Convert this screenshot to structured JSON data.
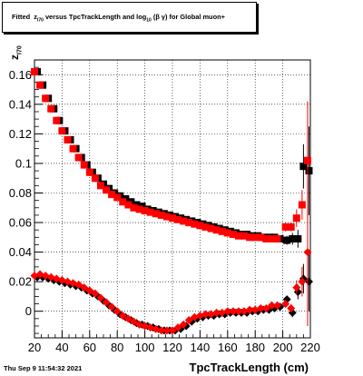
{
  "title": {
    "prefix": "Fitted",
    "z": "z",
    "z_sub": "I70",
    "middle": " versus TpcTrackLength and log",
    "log_sub": "10",
    "suffix": "(β γ) for Global muon+"
  },
  "footer_date": "Thu Sep  9 11:54:32 2021",
  "chart_data": {
    "type": "scatter",
    "xlabel": "TpcTrackLength (cm)",
    "ylabel_main": "z",
    "ylabel_sub": "I70",
    "xlim": [
      20,
      220
    ],
    "ylim": [
      -0.018,
      0.17
    ],
    "x_ticks": [
      20,
      40,
      60,
      80,
      100,
      120,
      140,
      160,
      180,
      200,
      220
    ],
    "y_ticks": [
      0,
      0.02,
      0.04,
      0.06,
      0.08,
      0.1,
      0.12,
      0.14,
      0.16
    ],
    "y_tick_labels": [
      "0",
      "0.02",
      "0.04",
      "0.06",
      "0.08",
      "0.1",
      "0.12",
      "0.14",
      "0.16"
    ],
    "grid": true,
    "colors": {
      "series_a": "#000000",
      "series_b": "#ff0000"
    },
    "series": [
      {
        "marker": "square",
        "color": "#000000",
        "x": [
          22,
          26,
          30,
          34,
          38,
          42,
          46,
          50,
          54,
          58,
          62,
          66,
          70,
          74,
          78,
          82,
          86,
          90,
          94,
          98,
          102,
          106,
          110,
          114,
          118,
          122,
          126,
          130,
          134,
          138,
          142,
          146,
          150,
          154,
          158,
          162,
          166,
          170,
          174,
          178,
          182,
          186,
          190,
          194,
          198,
          203,
          207,
          211,
          215,
          219
        ],
        "y": [
          0.162,
          0.153,
          0.144,
          0.137,
          0.129,
          0.122,
          0.116,
          0.11,
          0.104,
          0.099,
          0.094,
          0.09,
          0.086,
          0.083,
          0.08,
          0.078,
          0.076,
          0.074,
          0.072,
          0.071,
          0.069,
          0.068,
          0.067,
          0.066,
          0.065,
          0.064,
          0.063,
          0.062,
          0.061,
          0.06,
          0.059,
          0.058,
          0.057,
          0.056,
          0.055,
          0.054,
          0.053,
          0.052,
          0.052,
          0.051,
          0.051,
          0.05,
          0.05,
          0.05,
          0.049,
          0.048,
          0.049,
          0.049,
          0.098,
          0.095
        ],
        "yerr": [
          0,
          0,
          0,
          0,
          0,
          0,
          0,
          0,
          0,
          0,
          0,
          0,
          0,
          0,
          0,
          0,
          0,
          0,
          0,
          0,
          0,
          0,
          0,
          0,
          0,
          0,
          0,
          0,
          0,
          0,
          0,
          0,
          0,
          0,
          0,
          0,
          0,
          0,
          0,
          0,
          0,
          0,
          0,
          0,
          0,
          0.003,
          0.004,
          0.006,
          0.015,
          0.03
        ]
      },
      {
        "marker": "square",
        "color": "#ff0000",
        "x": [
          20,
          24,
          28,
          32,
          36,
          40,
          44,
          48,
          52,
          56,
          60,
          64,
          68,
          72,
          76,
          80,
          84,
          88,
          92,
          96,
          100,
          104,
          108,
          112,
          116,
          120,
          124,
          128,
          132,
          136,
          140,
          144,
          148,
          152,
          156,
          160,
          164,
          168,
          172,
          176,
          180,
          184,
          188,
          192,
          196,
          202,
          206,
          210,
          214,
          218
        ],
        "y": [
          0.162,
          0.153,
          0.144,
          0.137,
          0.129,
          0.122,
          0.116,
          0.11,
          0.104,
          0.099,
          0.094,
          0.09,
          0.085,
          0.082,
          0.079,
          0.077,
          0.074,
          0.072,
          0.07,
          0.069,
          0.068,
          0.067,
          0.066,
          0.065,
          0.064,
          0.063,
          0.062,
          0.061,
          0.06,
          0.059,
          0.058,
          0.057,
          0.056,
          0.055,
          0.054,
          0.053,
          0.052,
          0.051,
          0.051,
          0.05,
          0.05,
          0.05,
          0.049,
          0.049,
          0.049,
          0.057,
          0.057,
          0.063,
          0.072,
          0.102
        ],
        "yerr": [
          0,
          0,
          0,
          0,
          0,
          0,
          0,
          0,
          0,
          0,
          0,
          0,
          0,
          0,
          0,
          0,
          0,
          0,
          0,
          0,
          0,
          0,
          0,
          0,
          0,
          0,
          0,
          0,
          0,
          0,
          0,
          0,
          0,
          0,
          0,
          0,
          0,
          0,
          0,
          0,
          0,
          0,
          0,
          0,
          0,
          0.003,
          0.003,
          0.006,
          0.01,
          0.04
        ]
      },
      {
        "marker": "diamond",
        "color": "#000000",
        "x": [
          22,
          26,
          30,
          34,
          38,
          42,
          46,
          50,
          54,
          58,
          62,
          66,
          70,
          74,
          78,
          82,
          86,
          90,
          94,
          98,
          102,
          106,
          110,
          114,
          118,
          122,
          126,
          130,
          134,
          138,
          142,
          146,
          150,
          154,
          158,
          162,
          166,
          170,
          174,
          178,
          182,
          186,
          190,
          194,
          198,
          203,
          207,
          211,
          215,
          219
        ],
        "y": [
          0.023,
          0.023,
          0.022,
          0.021,
          0.02,
          0.019,
          0.018,
          0.017,
          0.016,
          0.014,
          0.012,
          0.01,
          0.007,
          0.004,
          0.001,
          -0.002,
          -0.004,
          -0.006,
          -0.008,
          -0.009,
          -0.01,
          -0.011,
          -0.012,
          -0.013,
          -0.013,
          -0.013,
          -0.012,
          -0.01,
          -0.007,
          -0.005,
          -0.004,
          -0.003,
          -0.003,
          -0.002,
          -0.002,
          -0.001,
          -0.001,
          -0.001,
          -0.001,
          0,
          0,
          0.001,
          0.001,
          0.002,
          0.003,
          0.008,
          -0.001,
          0.013,
          0.022,
          0.02
        ],
        "yerr": [
          0,
          0,
          0,
          0,
          0,
          0,
          0,
          0,
          0,
          0,
          0,
          0,
          0,
          0,
          0,
          0,
          0,
          0,
          0,
          0,
          0,
          0,
          0,
          0,
          0,
          0,
          0,
          0,
          0,
          0,
          0,
          0,
          0,
          0,
          0,
          0,
          0,
          0,
          0,
          0,
          0,
          0,
          0,
          0,
          0,
          0.002,
          0.003,
          0.005,
          0.01,
          0.02
        ]
      },
      {
        "marker": "diamond",
        "color": "#ff0000",
        "x": [
          20,
          24,
          28,
          32,
          36,
          40,
          44,
          48,
          52,
          56,
          60,
          64,
          68,
          72,
          76,
          80,
          84,
          88,
          92,
          96,
          100,
          104,
          108,
          112,
          116,
          120,
          124,
          128,
          132,
          136,
          140,
          144,
          148,
          152,
          156,
          160,
          164,
          168,
          172,
          176,
          180,
          184,
          188,
          192,
          196,
          202,
          206,
          210,
          214,
          218
        ],
        "y": [
          0.024,
          0.025,
          0.024,
          0.023,
          0.022,
          0.021,
          0.02,
          0.019,
          0.018,
          0.016,
          0.014,
          0.012,
          0.009,
          0.006,
          0.003,
          0,
          -0.003,
          -0.005,
          -0.007,
          -0.009,
          -0.01,
          -0.011,
          -0.012,
          -0.013,
          -0.013,
          -0.013,
          -0.011,
          -0.009,
          -0.006,
          -0.004,
          -0.003,
          -0.002,
          -0.002,
          -0.001,
          -0.001,
          0,
          0,
          0,
          0,
          0.001,
          0.001,
          0.002,
          0.002,
          0.004,
          0.004,
          0.005,
          0.002,
          0.016,
          0.02,
          0.04
        ],
        "yerr": [
          0,
          0,
          0,
          0,
          0,
          0,
          0,
          0,
          0,
          0,
          0,
          0,
          0,
          0,
          0,
          0,
          0,
          0,
          0,
          0,
          0,
          0,
          0,
          0,
          0,
          0,
          0,
          0,
          0,
          0,
          0,
          0,
          0,
          0,
          0,
          0,
          0,
          0,
          0,
          0,
          0,
          0,
          0,
          0,
          0,
          0.002,
          0.003,
          0.005,
          0.01,
          0.05
        ]
      }
    ]
  }
}
